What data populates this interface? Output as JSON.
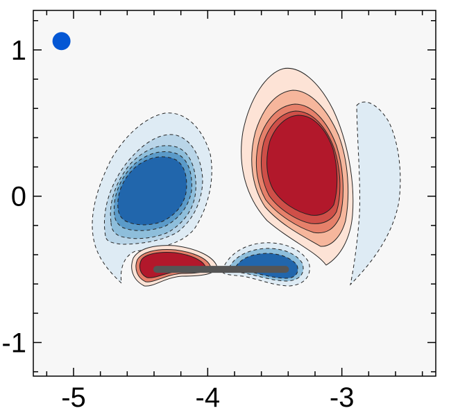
{
  "chart_data": {
    "type": "heatmap",
    "title": "",
    "xlabel": "",
    "ylabel": "",
    "xlim": [
      -5.3,
      -2.3
    ],
    "ylim": [
      -1.23,
      1.27
    ],
    "xticks": [
      {
        "value": -5,
        "label": "-5"
      },
      {
        "value": -4,
        "label": "-4"
      },
      {
        "value": -3,
        "label": "-3"
      }
    ],
    "yticks": [
      {
        "value": 1,
        "label": "1"
      },
      {
        "value": 0,
        "label": "0"
      },
      {
        "value": -1,
        "label": "-1"
      }
    ],
    "colors": {
      "background": "#f7f7f7",
      "positive": [
        "#fde3d6",
        "#f6b69c",
        "#e6806a",
        "#cf4f48",
        "#b2182b"
      ],
      "negative": [
        "#deebf4",
        "#b9d5e8",
        "#8ebedb",
        "#5b9bc9",
        "#2166ac"
      ],
      "marker": "#0457d4",
      "plate": "#555555"
    },
    "marker": {
      "x": -5.09,
      "y": 1.06
    },
    "plate": {
      "x1": -4.38,
      "x2": -3.42,
      "y": -0.5
    }
  }
}
